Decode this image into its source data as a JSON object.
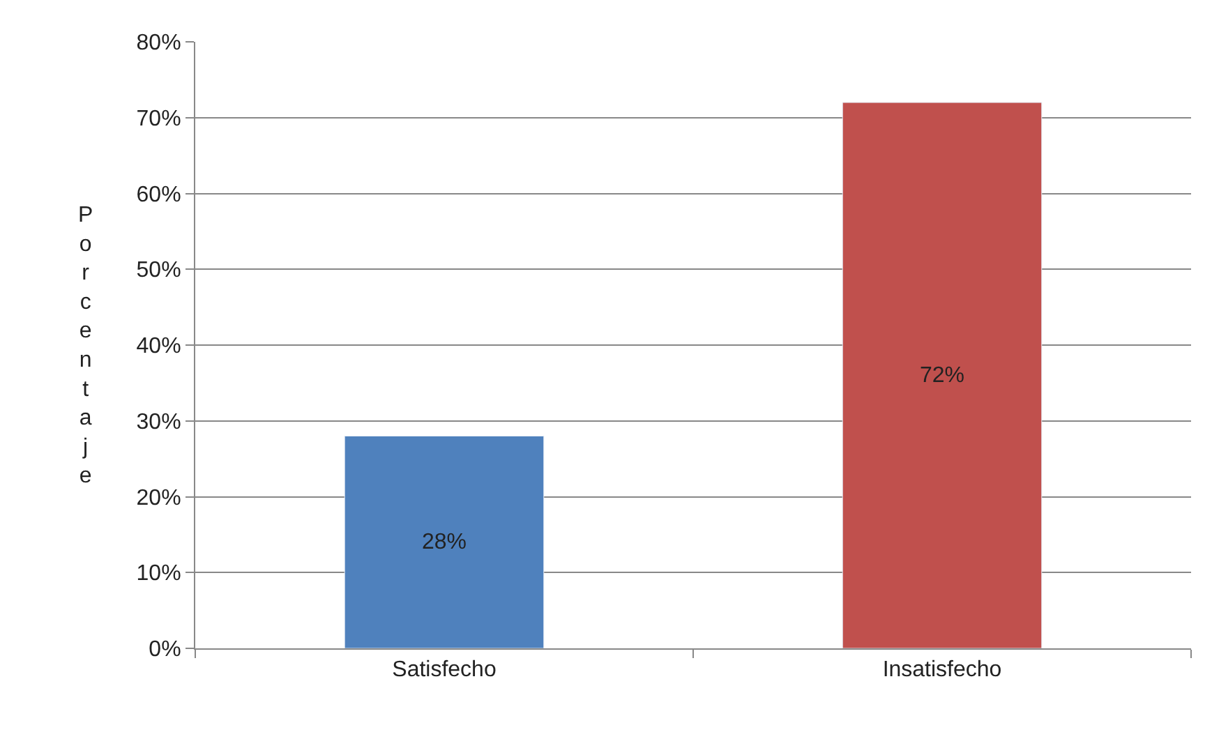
{
  "chart_data": {
    "type": "bar",
    "ylabel": "Porcentaje",
    "categories": [
      "Satisfecho",
      "Insatisfecho"
    ],
    "values": [
      28,
      72
    ],
    "colors": [
      "#4f81bd",
      "#c0504d"
    ],
    "value_labels": [
      "28%",
      "72%"
    ],
    "ylim": [
      0,
      80
    ],
    "yticks": [
      {
        "value": 0,
        "label": "0%"
      },
      {
        "value": 10,
        "label": "10%"
      },
      {
        "value": 20,
        "label": "20%"
      },
      {
        "value": 30,
        "label": "30%"
      },
      {
        "value": 40,
        "label": "40%"
      },
      {
        "value": 50,
        "label": "50%"
      },
      {
        "value": 60,
        "label": "60%"
      },
      {
        "value": 70,
        "label": "70%"
      },
      {
        "value": 80,
        "label": "80%"
      }
    ],
    "grid": "y",
    "legend": false
  }
}
